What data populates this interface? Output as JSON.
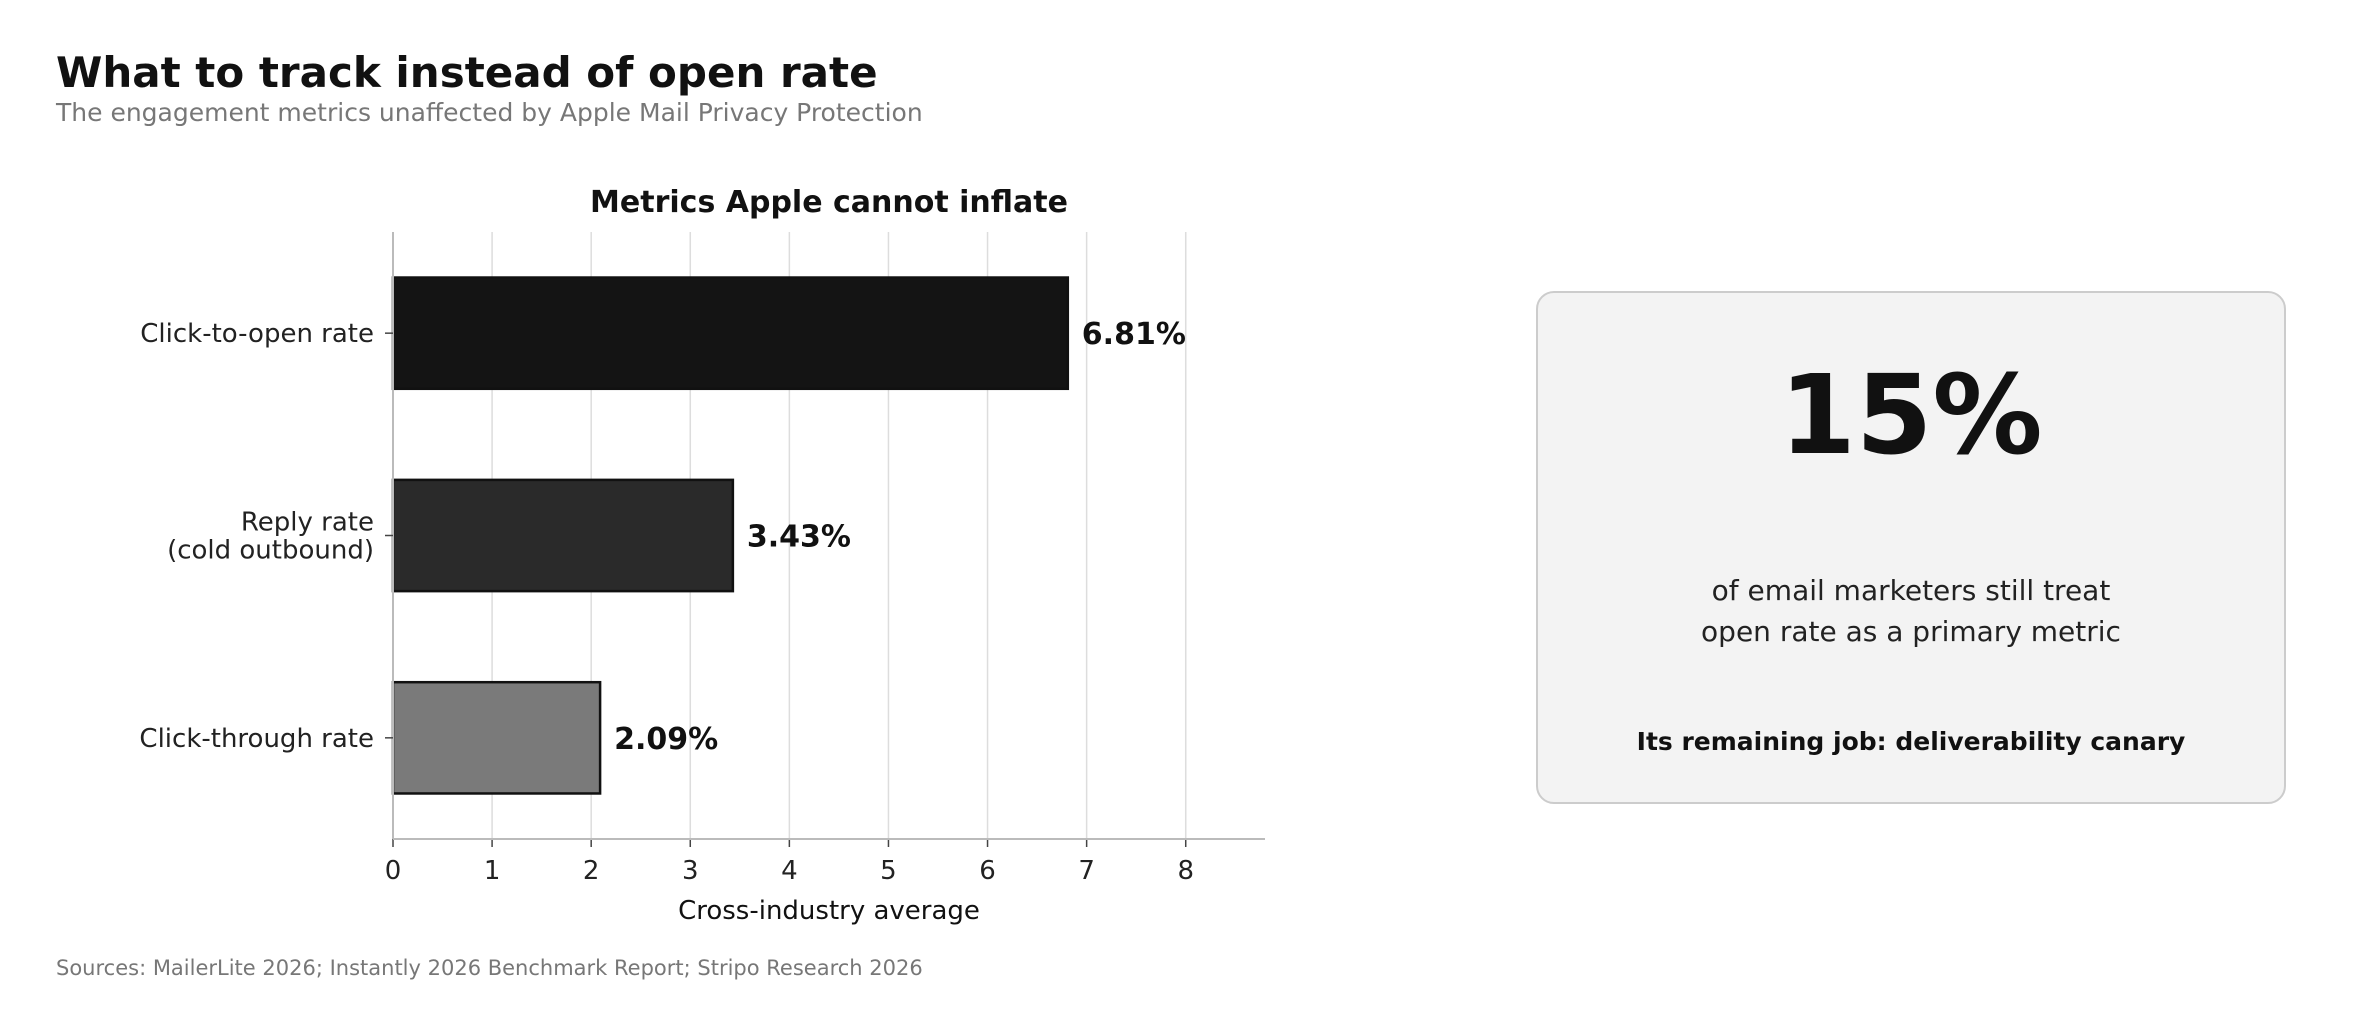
{
  "header": {
    "title": "What to track instead of open rate",
    "subtitle": "The engagement metrics unaffected by Apple Mail Privacy Protection"
  },
  "chart_data": {
    "type": "bar",
    "orientation": "horizontal",
    "title": "Metrics Apple cannot inflate",
    "xlabel": "Cross-industry average",
    "ylabel": "",
    "categories": [
      [
        "Click-to-open rate"
      ],
      [
        "Reply rate",
        "(cold outbound)"
      ],
      [
        "Click-through rate"
      ]
    ],
    "values": [
      6.81,
      3.43,
      2.09
    ],
    "data_labels": [
      "6.81%",
      "3.43%",
      "2.09%"
    ],
    "bar_colors": [
      "#141414",
      "#2a2a2a",
      "#7a7a7a"
    ],
    "xlim": [
      0,
      8.8
    ],
    "xticks": [
      0,
      1,
      2,
      3,
      4,
      5,
      6,
      7,
      8
    ],
    "grid": "vertical",
    "legend": "none"
  },
  "callout": {
    "big_value": "15%",
    "description_lines": [
      "of email marketers still treat",
      "open rate as a primary metric"
    ],
    "note": "Its remaining job: deliverability canary"
  },
  "footer": {
    "source": "Sources: MailerLite 2026; Instantly 2026 Benchmark Report; Stripo Research 2026"
  }
}
